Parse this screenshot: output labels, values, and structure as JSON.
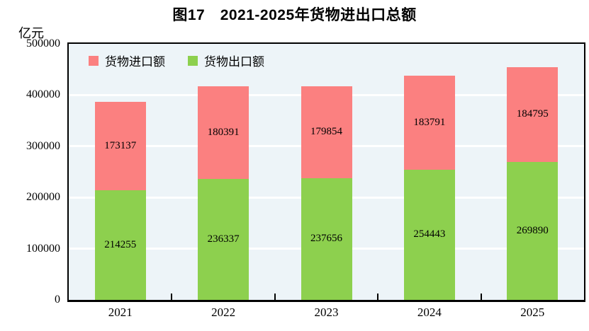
{
  "chart_data": {
    "type": "bar",
    "stacked": true,
    "title": "图17　2021-2025年货物进出口总额",
    "ylabel": "亿元",
    "xlabel": "",
    "categories": [
      "2021",
      "2022",
      "2023",
      "2024",
      "2025"
    ],
    "series": [
      {
        "key": "exports",
        "name": "货物出口额",
        "color": "#8DD04E",
        "values": [
          214255,
          236337,
          237656,
          254443,
          269890
        ]
      },
      {
        "key": "imports",
        "name": "货物进口额",
        "color": "#FB8080",
        "values": [
          173137,
          180391,
          179854,
          183791,
          184795
        ]
      }
    ],
    "legend": [
      {
        "label": "货物进口额",
        "color": "#FB8080"
      },
      {
        "label": "货物出口额",
        "color": "#8DD04E"
      }
    ],
    "ylim": [
      0,
      500000
    ],
    "yticks": [
      0,
      100000,
      200000,
      300000,
      400000,
      500000
    ],
    "grid": true,
    "grid_color": "#FFFFFF",
    "plot_background": "#EDF4F8",
    "axis_color": "#000000",
    "legend_position": "top-left-inside",
    "data_labels": true
  }
}
